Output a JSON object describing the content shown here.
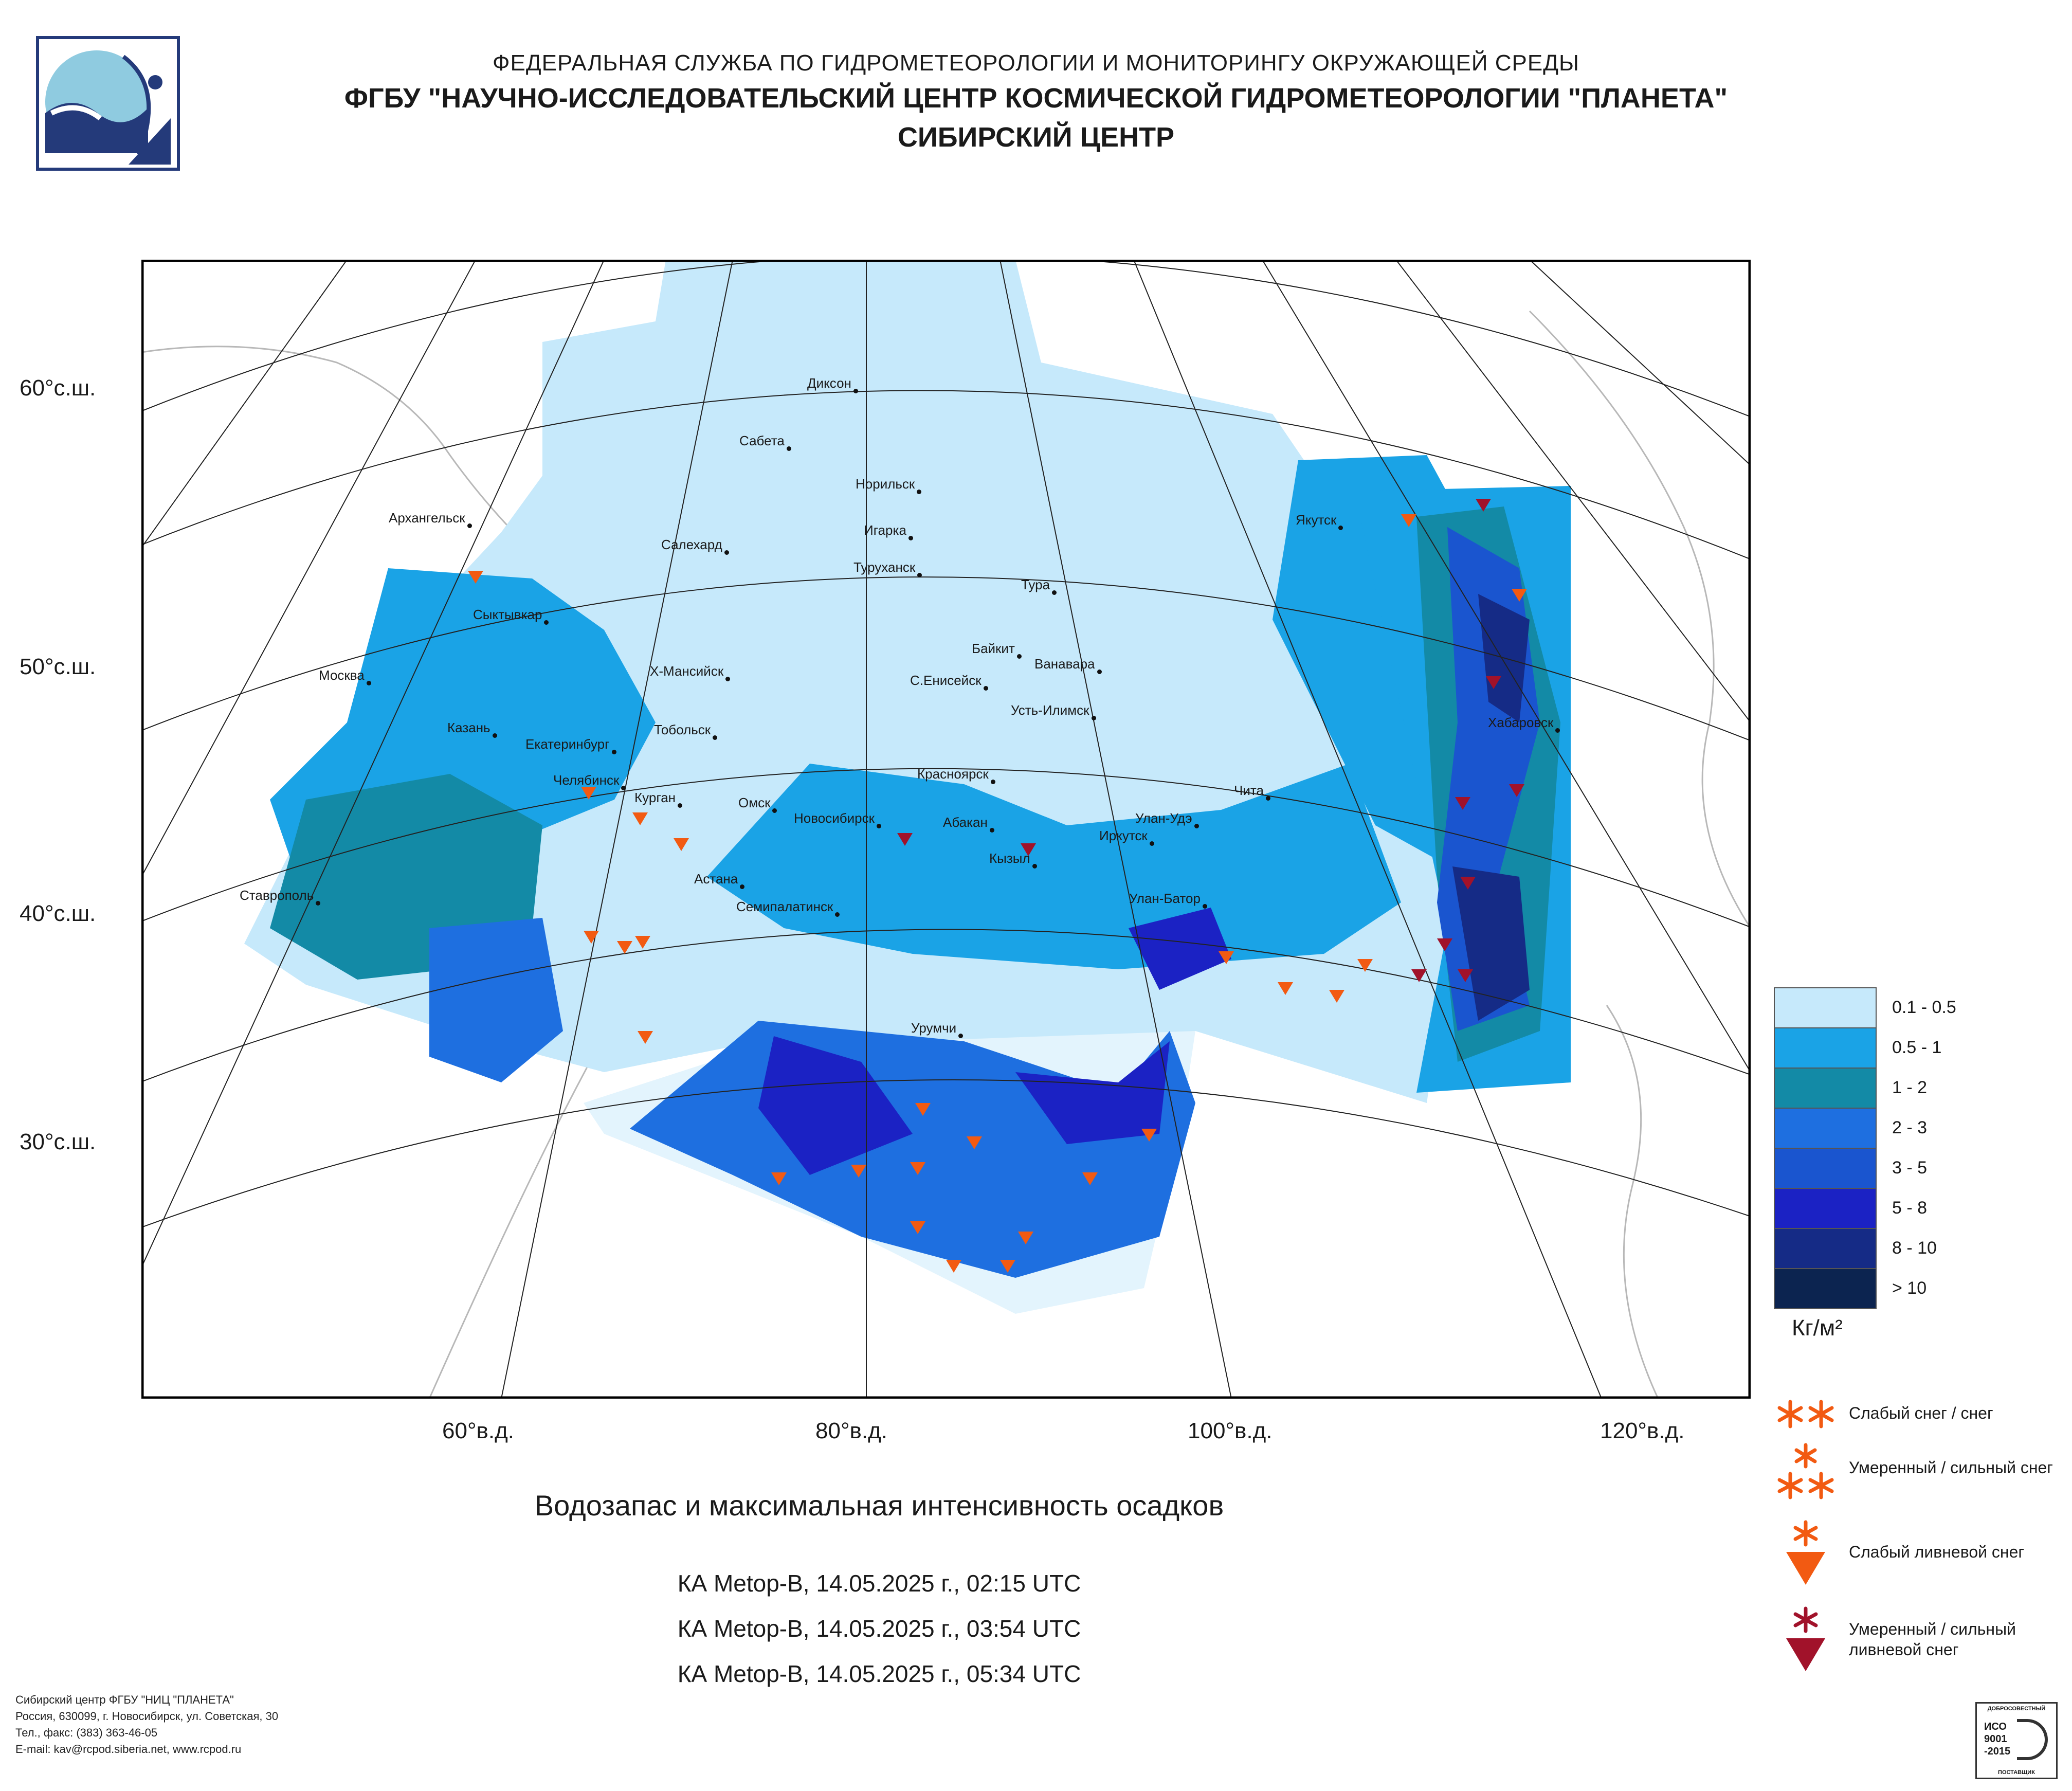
{
  "header": {
    "agency": "ФЕДЕРАЛЬНАЯ СЛУЖБА ПО ГИДРОМЕТЕОРОЛОГИИ И МОНИТОРИНГУ ОКРУЖАЮЩЕЙ СРЕДЫ",
    "org": "ФГБУ \"НАУЧНО-ИССЛЕДОВАТЕЛЬСКИЙ ЦЕНТР КОСМИЧЕСКОЙ ГИДРОМЕТЕОРОЛОГИИ \"ПЛАНЕТА\"",
    "center": "СИБИРСКИЙ ЦЕНТР"
  },
  "map": {
    "lat_labels": [
      "60°с.ш.",
      "50°с.ш.",
      "40°с.ш.",
      "30°с.ш."
    ],
    "lon_labels": [
      "60°в.д.",
      "80°в.д.",
      "100°в.д.",
      "120°в.д."
    ],
    "cities": [
      "Диксон",
      "Сабета",
      "Норильск",
      "Игарка",
      "Салехард",
      "Туруханск",
      "Архангельск",
      "Тура",
      "Якутск",
      "Сыктывкар",
      "Байкит",
      "Ванавара",
      "Москва",
      "Х-Мансийск",
      "С.Енисейск",
      "Усть-Илимск",
      "Казань",
      "Тобольск",
      "Хабаровск",
      "Екатеринбург",
      "Челябинск",
      "Курган",
      "Красноярск",
      "Омск",
      "Новосибирск",
      "Абакан",
      "Улан-Удэ",
      "Чита",
      "Иркутск",
      "Кызыл",
      "Астана",
      "Ставрополь",
      "Семипалатинск",
      "Улан-Батор",
      "Урумчи"
    ]
  },
  "caption": {
    "title": "Водозапас и максимальная интенсивность осадков",
    "passes": [
      "КА Metop-B, 14.05.2025 г., 02:15 UTC",
      "КА Metop-B, 14.05.2025 г., 03:54 UTC",
      "КА Metop-B, 14.05.2025 г., 05:34 UTC"
    ]
  },
  "legend": {
    "classes": [
      {
        "label": "0.1 - 0.5",
        "color": "#c6e9fb"
      },
      {
        "label": "0.5 - 1",
        "color": "#1aa3e6"
      },
      {
        "label": "1 - 2",
        "color": "#138aa6"
      },
      {
        "label": "2 - 3",
        "color": "#1e6fe0"
      },
      {
        "label": "3 - 5",
        "color": "#1a55cf"
      },
      {
        "label": "5 - 8",
        "color": "#1b22c4"
      },
      {
        "label": "8 - 10",
        "color": "#152b86"
      },
      {
        "label": "> 10",
        "color": "#0c2450"
      }
    ],
    "unit": "Кг/м²",
    "symbols": [
      {
        "label": "Слабый снег / снег",
        "icon": "two-asterisks-icon",
        "color": "#f25a12"
      },
      {
        "label": "Умеренный / сильный снег",
        "icon": "three-asterisks-icon",
        "color": "#f25a12"
      },
      {
        "label": "Слабый ливневой снег",
        "icon": "asterisk-over-triangle-icon",
        "color": "#f25a12"
      },
      {
        "label": "Умеренный / сильный ливневой снег",
        "icon": "asterisk-over-triangle-icon",
        "color": "#a1122a"
      }
    ]
  },
  "footer": {
    "line1": "Сибирский центр ФГБУ \"НИЦ \"ПЛАНЕТА\"",
    "line2": "Россия, 630099, г. Новосибирск, ул. Советская, 30",
    "line3": "Тел., факс: (383) 363-46-05",
    "line4": "E-mail: kav@rcpod.siberia.net, www.rcpod.ru"
  },
  "badge": {
    "top": "ДОБРОСОВЕСТНЫЙ",
    "text1": "ИСО",
    "text2": "9001",
    "text3": "-2015",
    "bottom": "ПОСТАВЩИК"
  }
}
